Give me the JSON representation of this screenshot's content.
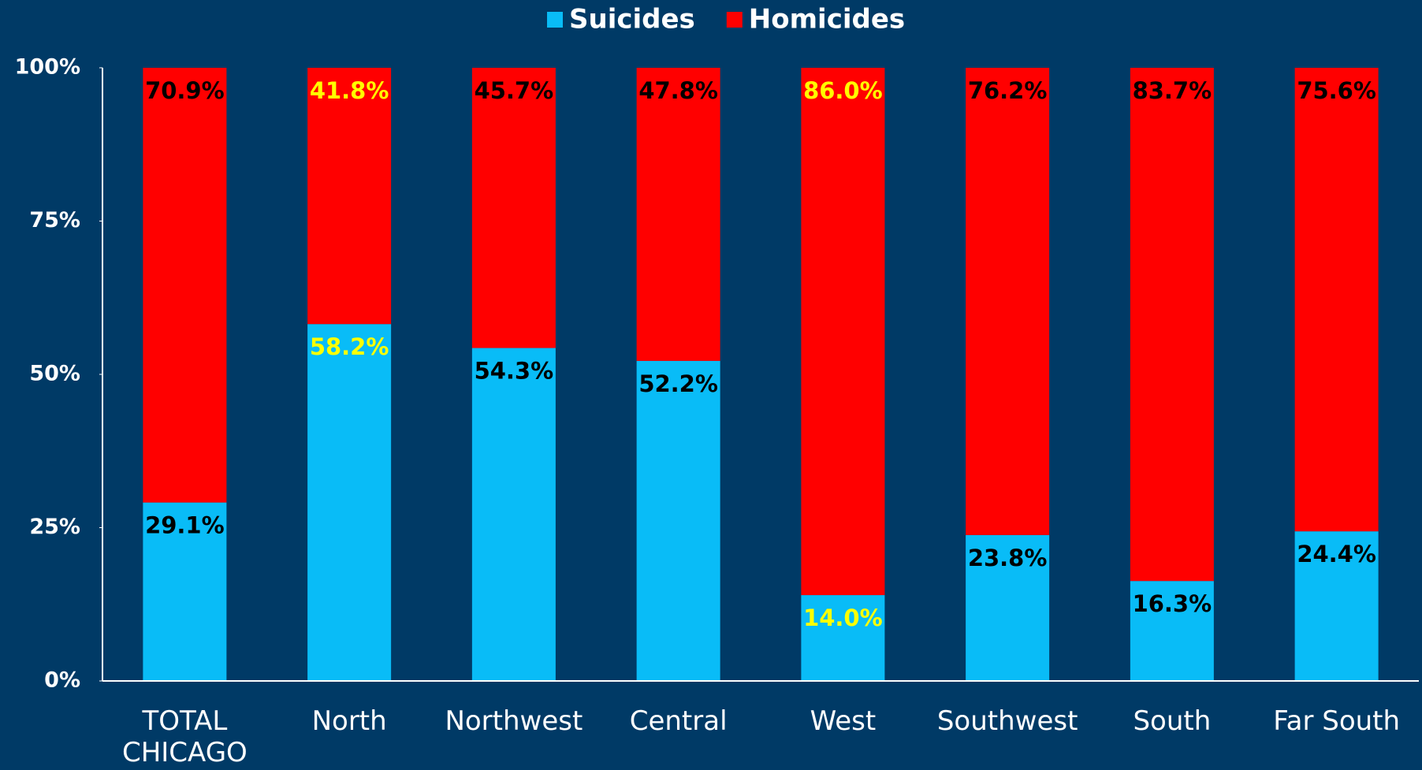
{
  "chart_data": {
    "type": "stacked_bar",
    "categories": [
      "TOTAL\nCHICAGO",
      "North",
      "Northwest",
      "Central",
      "West",
      "Southwest",
      "South",
      "Far South"
    ],
    "series": [
      {
        "name": "Suicides",
        "color": "#09bcf7",
        "values": [
          29.1,
          58.2,
          54.3,
          52.2,
          14.0,
          23.8,
          16.3,
          24.4
        ],
        "value_labels": [
          "29.1%",
          "58.2%",
          "54.3%",
          "52.2%",
          "14.0%",
          "23.8%",
          "16.3%",
          "24.4%"
        ],
        "label_colors": [
          "#000000",
          "#ffff00",
          "#000000",
          "#000000",
          "#ffff00",
          "#000000",
          "#000000",
          "#000000"
        ]
      },
      {
        "name": "Homicides",
        "color": "#ff0000",
        "values": [
          70.9,
          41.8,
          45.7,
          47.8,
          86.0,
          76.2,
          83.7,
          75.6
        ],
        "value_labels": [
          "70.9%",
          "41.8%",
          "45.7%",
          "47.8%",
          "86.0%",
          "76.2%",
          "83.7%",
          "75.6%"
        ],
        "label_colors": [
          "#000000",
          "#ffff00",
          "#000000",
          "#000000",
          "#ffff00",
          "#000000",
          "#000000",
          "#000000"
        ]
      }
    ],
    "ylim": [
      0,
      100
    ],
    "yticks": [
      {
        "value": 0,
        "label": "0%"
      },
      {
        "value": 25,
        "label": "25%"
      },
      {
        "value": 50,
        "label": "50%"
      },
      {
        "value": 75,
        "label": "75%"
      },
      {
        "value": 100,
        "label": "100%"
      }
    ],
    "legend": "top"
  }
}
